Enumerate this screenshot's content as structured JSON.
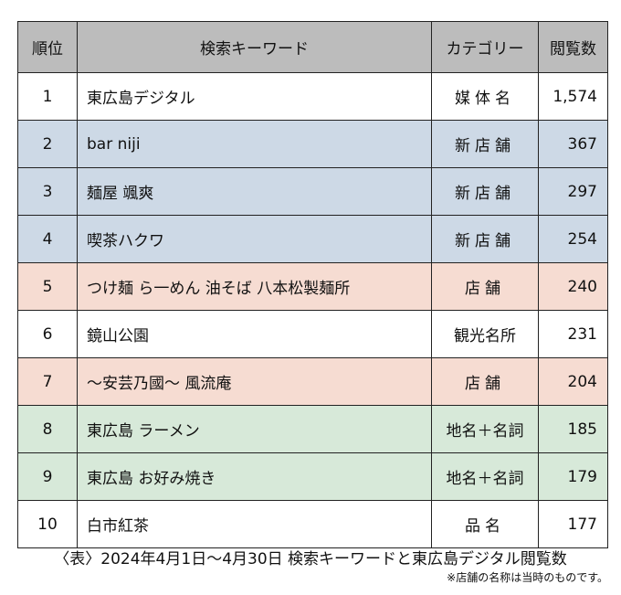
{
  "table": {
    "headers": {
      "rank": "順位",
      "keyword": "検索キーワード",
      "category": "カテゴリー",
      "views": "閲覧数"
    },
    "rows": [
      {
        "rank": "1",
        "keyword": "東広島デジタル",
        "category": "媒体名",
        "views": "1,574",
        "bg": "#ffffff"
      },
      {
        "rank": "2",
        "keyword": "bar niji",
        "category": "新店舗",
        "views": "367",
        "bg": "#cdd9e6"
      },
      {
        "rank": "3",
        "keyword": "麺屋 颯爽",
        "category": "新店舗",
        "views": "297",
        "bg": "#cdd9e6"
      },
      {
        "rank": "4",
        "keyword": "喫茶ハクワ",
        "category": "新店舗",
        "views": "254",
        "bg": "#cdd9e6"
      },
      {
        "rank": "5",
        "keyword": "つけ麺 ら一めん 油そば 八本松製麺所",
        "category": "店舗",
        "views": "240",
        "bg": "#f6dcd2"
      },
      {
        "rank": "6",
        "keyword": "鏡山公園",
        "category": "観光名所",
        "views": "231",
        "bg": "#ffffff"
      },
      {
        "rank": "7",
        "keyword": "～安芸乃國～ 風流庵",
        "category": "店舗",
        "views": "204",
        "bg": "#f6dcd2"
      },
      {
        "rank": "8",
        "keyword": "東広島 ラーメン",
        "category": "地名＋名詞",
        "views": "185",
        "bg": "#d7e9d9"
      },
      {
        "rank": "9",
        "keyword": "東広島 お好み焼き",
        "category": "地名＋名詞",
        "views": "179",
        "bg": "#d7e9d9"
      },
      {
        "rank": "10",
        "keyword": "白市紅茶",
        "category": "品名",
        "views": "177",
        "bg": "#ffffff"
      }
    ]
  },
  "caption": "〈表〉2024年4月1日～4月30日 検索キーワードと東広島デジタル閲覧数",
  "note": "※店舗の名称は当時のものです。",
  "colors": {
    "header_bg": "#bcbcbc",
    "border": "#222222",
    "blue_row": "#cdd9e6",
    "pink_row": "#f6dcd2",
    "green_row": "#d7e9d9"
  }
}
